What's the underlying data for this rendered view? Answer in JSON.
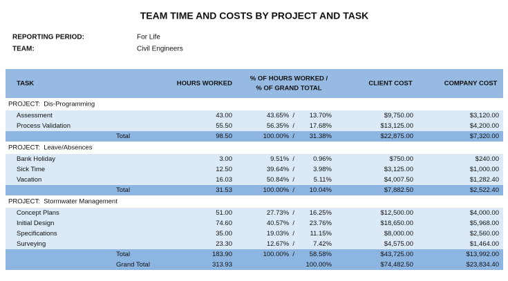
{
  "header": {
    "title": "TEAM TIME AND COSTS BY PROJECT AND TASK",
    "reporting_period_label": "REPORTING PERIOD:",
    "reporting_period": "For Life",
    "team_label": "TEAM:",
    "team": "Civil Engineers"
  },
  "table": {
    "columns": {
      "task": "TASK",
      "hours": "HOURS WORKED",
      "pct": [
        "% OF HOURS WORKED /",
        "% OF GRAND TOTAL"
      ],
      "client": "CLIENT COST",
      "company": "COMPANY COST"
    },
    "projects": [
      {
        "label": "PROJECT:  Dis-Programming",
        "rows": [
          [
            "Assessment",
            "43.00",
            "43.65%  /",
            "13.70%",
            "$9,750.00",
            "$3,120.00"
          ],
          [
            "Process Validation",
            "55.50",
            "56.35%  /",
            "17.68%",
            "$13,125.00",
            "$4,200.00"
          ]
        ],
        "total": [
          "Total",
          "98.50",
          "100.00%  /",
          "31.38%",
          "$22,875.00",
          "$7,320.00"
        ]
      },
      {
        "label": "PROJECT:  Leave/Absences",
        "rows": [
          [
            "Bank Holiday",
            "3.00",
            "9.51%  /",
            "0.96%",
            "$750.00",
            "$240.00"
          ],
          [
            "Sick Time",
            "12.50",
            "39.64%  /",
            "3.98%",
            "$3,125.00",
            "$1,000.00"
          ],
          [
            "Vacation",
            "16.03",
            "50.84%  /",
            "5.11%",
            "$4,007.50",
            "$1,282.40"
          ]
        ],
        "total": [
          "Total",
          "31.53",
          "100.00%  /",
          "10.04%",
          "$7,882.50",
          "$2,522.40"
        ]
      },
      {
        "label": "PROJECT:  Stormwater Management",
        "rows": [
          [
            "Concept Plans",
            "51.00",
            "27.73%  /",
            "16.25%",
            "$12,500.00",
            "$4,000.00"
          ],
          [
            "Initial Design",
            "74.60",
            "40.57%  /",
            "23.76%",
            "$18,650.00",
            "$5,968.00"
          ],
          [
            "Specifications",
            "35.00",
            "19.03%  /",
            "11.15%",
            "$8,000.00",
            "$2,560.00"
          ],
          [
            "Surveying",
            "23.30",
            "12.67%  /",
            "7.42%",
            "$4,575.00",
            "$1,464.00"
          ]
        ],
        "total": [
          "Total",
          "183.90",
          "100.00%  /",
          "58.58%",
          "$43,725.00",
          "$13,992.00"
        ]
      }
    ],
    "grand_total": {
      "label": "Grand Total",
      "hours": "313.93",
      "pct_grand": "100.00%",
      "client": "$74,482.50",
      "company": "$23,834.40"
    }
  }
}
